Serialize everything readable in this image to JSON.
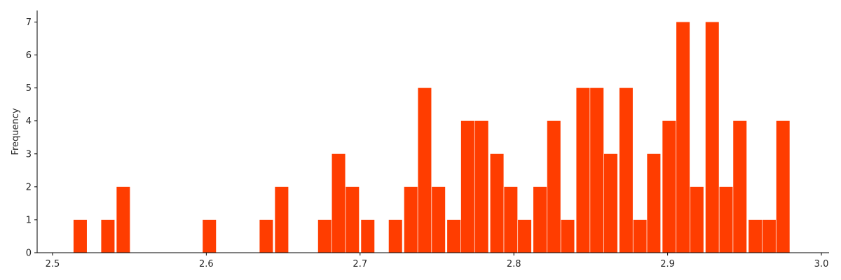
{
  "chart_data": {
    "type": "bar",
    "title": "",
    "xlabel": "",
    "ylabel": "Frequency",
    "xlim": [
      2.49,
      3.005
    ],
    "ylim": [
      0,
      7.35
    ],
    "bar_color": "#ff3d00",
    "bin_width": 0.00935,
    "bins": [
      {
        "x": 2.518,
        "count": 1
      },
      {
        "x": 2.536,
        "count": 1
      },
      {
        "x": 2.546,
        "count": 2
      },
      {
        "x": 2.602,
        "count": 1
      },
      {
        "x": 2.639,
        "count": 1
      },
      {
        "x": 2.649,
        "count": 2
      },
      {
        "x": 2.677,
        "count": 1
      },
      {
        "x": 2.686,
        "count": 3
      },
      {
        "x": 2.695,
        "count": 2
      },
      {
        "x": 2.705,
        "count": 1
      },
      {
        "x": 2.723,
        "count": 1
      },
      {
        "x": 2.733,
        "count": 2
      },
      {
        "x": 2.742,
        "count": 5
      },
      {
        "x": 2.751,
        "count": 2
      },
      {
        "x": 2.761,
        "count": 1
      },
      {
        "x": 2.77,
        "count": 4
      },
      {
        "x": 2.779,
        "count": 4
      },
      {
        "x": 2.789,
        "count": 3
      },
      {
        "x": 2.798,
        "count": 2
      },
      {
        "x": 2.807,
        "count": 1
      },
      {
        "x": 2.817,
        "count": 2
      },
      {
        "x": 2.826,
        "count": 4
      },
      {
        "x": 2.835,
        "count": 1
      },
      {
        "x": 2.845,
        "count": 5
      },
      {
        "x": 2.854,
        "count": 5
      },
      {
        "x": 2.863,
        "count": 3
      },
      {
        "x": 2.873,
        "count": 5
      },
      {
        "x": 2.882,
        "count": 1
      },
      {
        "x": 2.891,
        "count": 3
      },
      {
        "x": 2.901,
        "count": 4
      },
      {
        "x": 2.91,
        "count": 7
      },
      {
        "x": 2.919,
        "count": 2
      },
      {
        "x": 2.929,
        "count": 7
      },
      {
        "x": 2.938,
        "count": 2
      },
      {
        "x": 2.947,
        "count": 4
      },
      {
        "x": 2.957,
        "count": 1
      },
      {
        "x": 2.966,
        "count": 1
      },
      {
        "x": 2.975,
        "count": 4
      }
    ],
    "x_ticks": [
      "2.5",
      "2.6",
      "2.7",
      "2.8",
      "2.9",
      "3.0"
    ],
    "y_ticks": [
      "0",
      "1",
      "2",
      "3",
      "4",
      "5",
      "6",
      "7"
    ],
    "grid": false,
    "legend": "none"
  }
}
